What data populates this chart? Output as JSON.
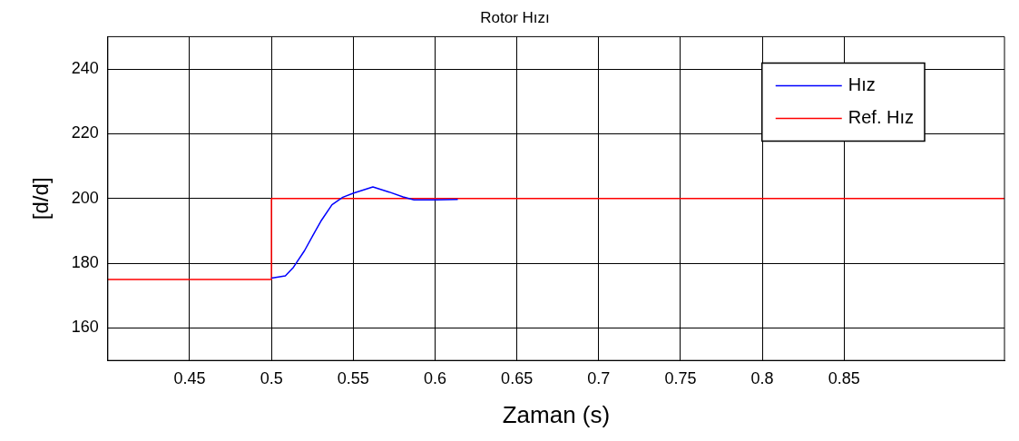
{
  "chart_data": {
    "type": "line",
    "title": "Rotor Hızı",
    "xlabel": "Zaman (s)",
    "ylabel": "[d/d]",
    "xlim": [
      0.4,
      0.948
    ],
    "xticks": [
      0.45,
      0.5,
      0.55,
      0.6,
      0.65,
      0.7,
      0.75,
      0.8,
      0.85
    ],
    "ylim": [
      150,
      250
    ],
    "yticks": [
      160,
      180,
      200,
      220,
      240
    ],
    "grid": true,
    "legend": "top right",
    "marker": "none",
    "line_style": "solid",
    "series": [
      {
        "name": "Hız",
        "color": "#0000ff",
        "x": [
          0.5,
          0.5085,
          0.5135,
          0.5202,
          0.5252,
          0.5302,
          0.537,
          0.5436,
          0.5503,
          0.562,
          0.572,
          0.5804,
          0.5871,
          0.6005,
          0.6139
        ],
        "values": [
          175.4,
          176.1,
          178.8,
          183.9,
          188.5,
          193.0,
          198.1,
          200.4,
          201.7,
          203.6,
          202.0,
          200.5,
          199.6,
          199.6,
          199.7
        ]
      },
      {
        "name": "Ref. Hız",
        "color": "#ff0000",
        "type": "step",
        "x": [
          0.4,
          0.5,
          0.948
        ],
        "values": [
          175,
          200,
          200
        ]
      }
    ]
  }
}
